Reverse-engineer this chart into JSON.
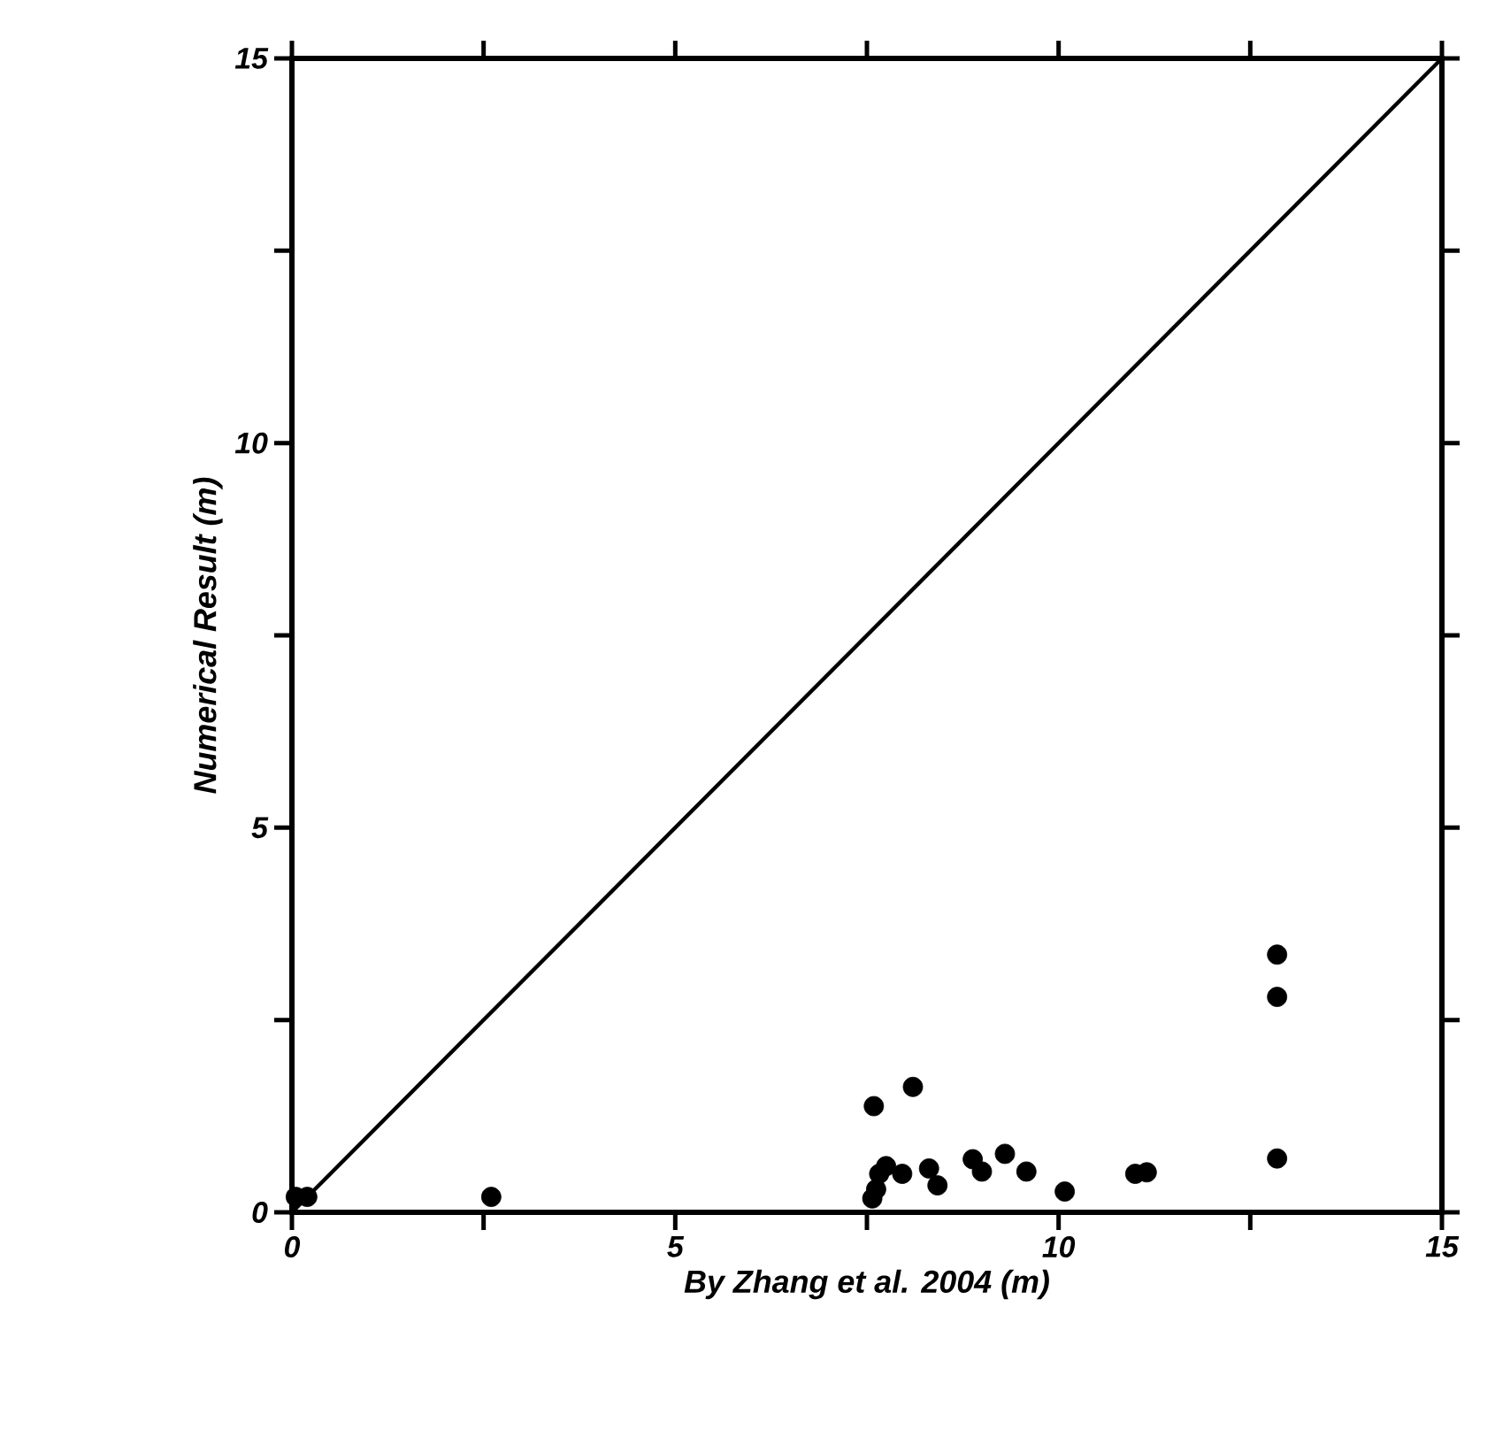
{
  "chart_data": {
    "type": "scatter",
    "xlabel": "By Zhang et al. 2004 (m)",
    "ylabel": "Numerical Result (m)",
    "xlim": [
      0,
      15
    ],
    "ylim": [
      0,
      15
    ],
    "xticks": [
      0,
      {
        "value": 2.5,
        "label": null
      },
      5,
      {
        "value": 7.5,
        "label": null
      },
      10,
      {
        "value": 12.5,
        "label": null
      },
      15
    ],
    "yticks": [
      0,
      {
        "value": 2.5,
        "label": null
      },
      5,
      {
        "value": 7.5,
        "label": null
      },
      10,
      {
        "value": 12.5,
        "label": null
      },
      15
    ],
    "grid": false,
    "series": [
      {
        "marker": "circle",
        "color": "#000000",
        "x": [
          0.05,
          0.2,
          2.6,
          7.59,
          8.1,
          7.66,
          7.62,
          7.57,
          7.75,
          7.96,
          8.31,
          8.42,
          8.88,
          9.0,
          9.3,
          9.58,
          10.08,
          11.0,
          11.15,
          12.85,
          12.85,
          12.85
        ],
        "values": [
          0.2,
          0.2,
          0.2,
          1.38,
          1.63,
          0.5,
          0.3,
          0.18,
          0.6,
          0.5,
          0.57,
          0.35,
          0.69,
          0.53,
          0.76,
          0.53,
          0.27,
          0.5,
          0.52,
          3.35,
          2.8,
          0.7
        ]
      },
      {
        "type": "line",
        "marker": "none",
        "color": "#000000",
        "x": [
          0,
          15
        ],
        "values": [
          0,
          15
        ]
      }
    ]
  }
}
